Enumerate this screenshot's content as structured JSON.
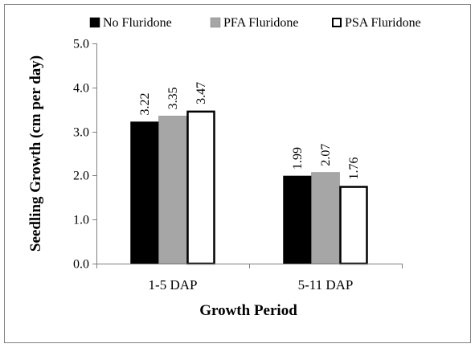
{
  "chart_data": {
    "type": "bar",
    "categories": [
      "1-5 DAP",
      "5-11 DAP"
    ],
    "series": [
      {
        "name": "No Fluridone",
        "values": [
          3.22,
          1.99
        ],
        "color": "#000000",
        "value_labels": [
          "3.22",
          "1.99"
        ]
      },
      {
        "name": "PFA Fluridone",
        "values": [
          3.35,
          2.07
        ],
        "color": "#a6a6a6",
        "value_labels": [
          "3.35",
          "2.07"
        ]
      },
      {
        "name": "PSA Fluridone",
        "values": [
          3.47,
          1.76
        ],
        "color": "#ffffff",
        "value_labels": [
          "3.47",
          "1.76"
        ]
      }
    ],
    "title": "",
    "xlabel": "Growth Period",
    "ylabel": "Seedling Growth (cm per day)",
    "ylim": [
      0,
      5
    ],
    "yticks": [
      0,
      1,
      2,
      3,
      4,
      5
    ],
    "ytick_labels": [
      "0.0",
      "1.0",
      "2.0",
      "3.0",
      "4.0",
      "5.0"
    ],
    "grid": false,
    "legend_position": "top"
  }
}
